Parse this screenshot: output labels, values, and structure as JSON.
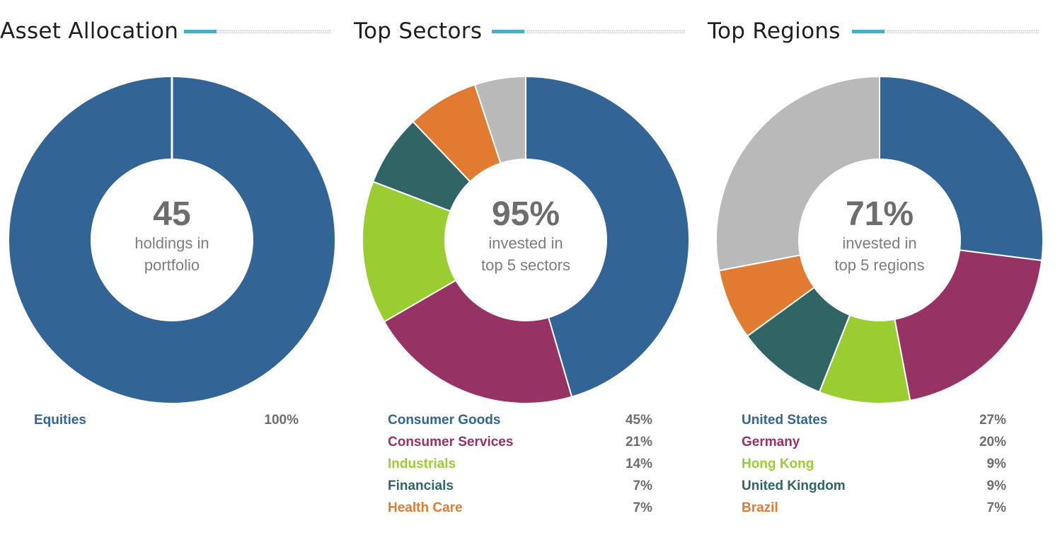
{
  "chart_data": [
    {
      "type": "pie",
      "title": "Asset Allocation",
      "center": {
        "big": "45",
        "line1": "holdings in",
        "line2": "portfolio"
      },
      "slices": [
        {
          "label": "Equities",
          "value": 100,
          "display": "100%",
          "color": "#326496"
        }
      ]
    },
    {
      "type": "pie",
      "title": "Top Sectors",
      "center": {
        "big": "95%",
        "line1": "invested in",
        "line2": "top 5 sectors"
      },
      "slices": [
        {
          "label": "Consumer Goods",
          "value": 45,
          "display": "45%",
          "color": "#326496"
        },
        {
          "label": "Consumer Services",
          "value": 21,
          "display": "21%",
          "color": "#963264"
        },
        {
          "label": "Industrials",
          "value": 14,
          "display": "14%",
          "color": "#9acd32"
        },
        {
          "label": "Financials",
          "value": 7,
          "display": "7%",
          "color": "#316464"
        },
        {
          "label": "Health Care",
          "value": 7,
          "display": "7%",
          "color": "#e07b31"
        },
        {
          "label": "",
          "value": 5,
          "display": "",
          "color": "#b9b9b9"
        }
      ]
    },
    {
      "type": "pie",
      "title": "Top Regions",
      "center": {
        "big": "71%",
        "line1": "invested in",
        "line2": "top 5 regions"
      },
      "slices": [
        {
          "label": "United States",
          "value": 27,
          "display": "27%",
          "color": "#326496"
        },
        {
          "label": "Germany",
          "value": 20,
          "display": "20%",
          "color": "#963264"
        },
        {
          "label": "Hong Kong",
          "value": 9,
          "display": "9%",
          "color": "#9acd32"
        },
        {
          "label": "United Kingdom",
          "value": 9,
          "display": "9%",
          "color": "#316464"
        },
        {
          "label": "Brazil",
          "value": 7,
          "display": "7%",
          "color": "#e07b31"
        },
        {
          "label": "",
          "value": 28,
          "display": "",
          "color": "#b9b9b9"
        }
      ]
    }
  ]
}
